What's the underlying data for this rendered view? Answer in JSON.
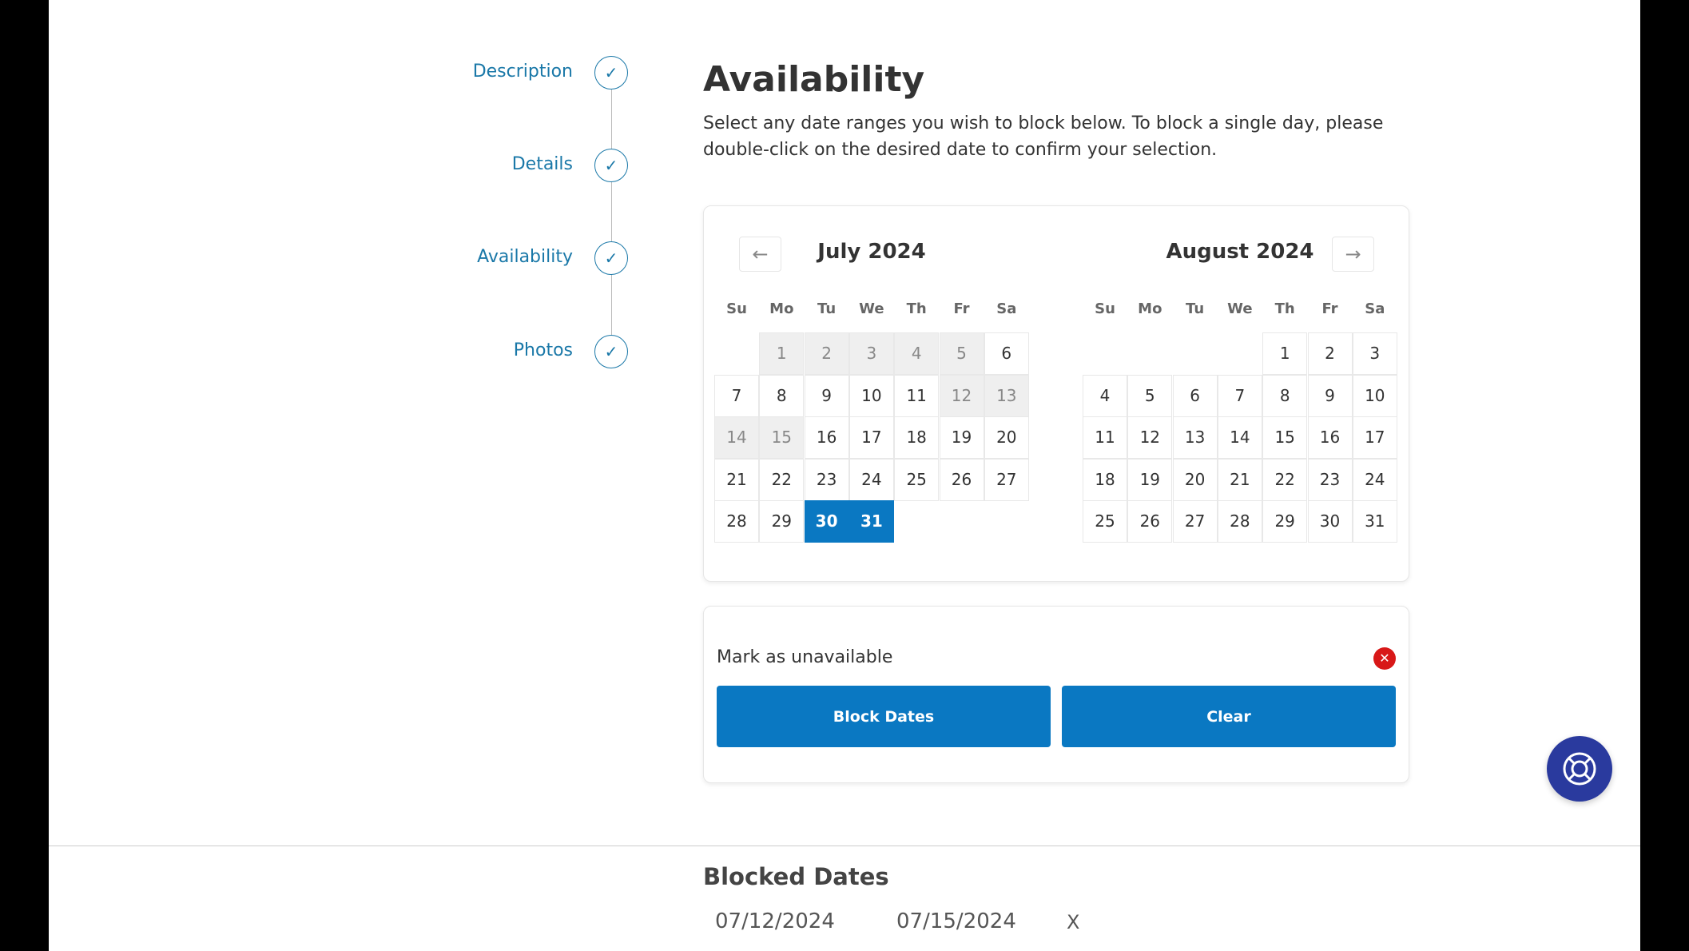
{
  "steps": [
    {
      "label": "Description"
    },
    {
      "label": "Details"
    },
    {
      "label": "Availability"
    },
    {
      "label": "Photos"
    }
  ],
  "check_icon": "✓",
  "title": "Availability",
  "description": "Select any date ranges you wish to block below. To block a single day, please double-click on the desired date to confirm your selection.",
  "calendar": {
    "prev_icon": "←",
    "next_icon": "→",
    "weekdays": [
      "Su",
      "Mo",
      "Tu",
      "We",
      "Th",
      "Fr",
      "Sa"
    ],
    "months": [
      {
        "title": "July 2024",
        "first_weekday": 1,
        "days": 31,
        "blocked": [
          1,
          2,
          3,
          4,
          5,
          12,
          13,
          14,
          15
        ],
        "selected": [
          30,
          31
        ]
      },
      {
        "title": "August 2024",
        "first_weekday": 4,
        "days": 31,
        "blocked": [],
        "selected": []
      }
    ],
    "colors": {
      "selected": "#0a78c2",
      "blocked": "#efefef"
    }
  },
  "unavailable": {
    "label": "Mark as unavailable",
    "close_icon": "✕",
    "block_label": "Block Dates",
    "clear_label": "Clear"
  },
  "help_icon": "lifebuoy-icon",
  "blocked_dates": {
    "title": "Blocked Dates",
    "ranges": [
      {
        "start": "07/12/2024",
        "end": "07/15/2024",
        "remove": "X"
      }
    ]
  }
}
